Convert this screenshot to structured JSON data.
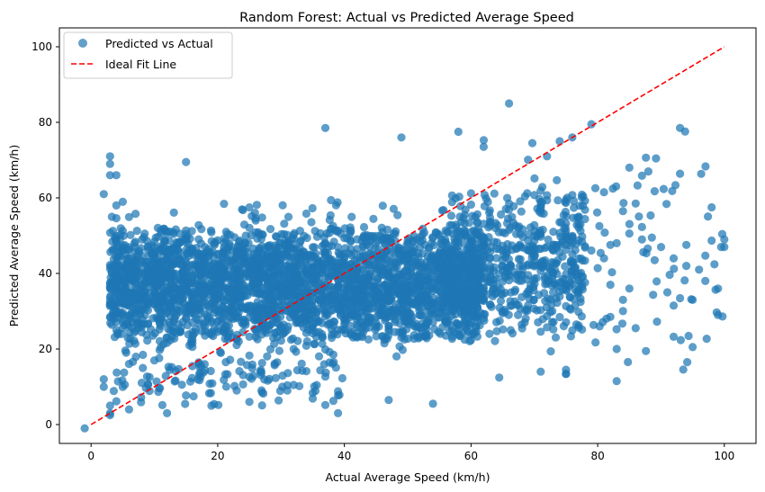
{
  "chart_data": {
    "type": "scatter",
    "title": "Random Forest: Actual vs Predicted Average Speed",
    "xlabel": "Actual Average Speed (km/h)",
    "ylabel": "Predicted Average Speed (km/h)",
    "xlim": [
      -5,
      105
    ],
    "ylim": [
      -5,
      105
    ],
    "xticks": [
      0,
      20,
      40,
      60,
      80,
      100
    ],
    "yticks": [
      0,
      20,
      40,
      60,
      80,
      100
    ],
    "grid": false,
    "legend_position": "top-left",
    "colors": {
      "points": "#1f77b4",
      "ideal_line": "#ff0000"
    },
    "series": [
      {
        "name": "Predicted vs Actual",
        "kind": "scatter",
        "clusters": [
          {
            "x_range": [
              3,
              62
            ],
            "y_range": [
              22,
              52
            ],
            "count": 2600
          },
          {
            "x_range": [
              55,
              78
            ],
            "y_range": [
              24,
              62
            ],
            "count": 600
          },
          {
            "x_range": [
              3,
              50
            ],
            "y_range": [
              18,
              60
            ],
            "count": 500
          },
          {
            "x_range": [
              3,
              40
            ],
            "y_range": [
              4,
              22
            ],
            "count": 140
          },
          {
            "x_range": [
              62,
              100
            ],
            "y_range": [
              12,
              78
            ],
            "count": 110
          }
        ],
        "points": [
          {
            "x": -1,
            "y": -1
          },
          {
            "x": 3,
            "y": 2.5
          },
          {
            "x": 3,
            "y": 3
          },
          {
            "x": 3,
            "y": 5
          },
          {
            "x": 3,
            "y": 71
          },
          {
            "x": 3,
            "y": 69
          },
          {
            "x": 3,
            "y": 66
          },
          {
            "x": 4,
            "y": 66
          },
          {
            "x": 2,
            "y": 61
          },
          {
            "x": 4,
            "y": 58
          },
          {
            "x": 2,
            "y": 12
          },
          {
            "x": 2,
            "y": 10
          },
          {
            "x": 6,
            "y": 4
          },
          {
            "x": 12,
            "y": 3
          },
          {
            "x": 19,
            "y": 5
          },
          {
            "x": 37,
            "y": 78.5
          },
          {
            "x": 39,
            "y": 3
          },
          {
            "x": 66,
            "y": 85
          },
          {
            "x": 93,
            "y": 78.5
          },
          {
            "x": 98,
            "y": 57.5
          },
          {
            "x": 100,
            "y": 49
          },
          {
            "x": 99.5,
            "y": 47
          },
          {
            "x": 100,
            "y": 47
          },
          {
            "x": 99,
            "y": 36
          },
          {
            "x": 99,
            "y": 29
          },
          {
            "x": 95,
            "y": 20.5
          },
          {
            "x": 83,
            "y": 20
          },
          {
            "x": 83,
            "y": 11.5
          },
          {
            "x": 71,
            "y": 14
          },
          {
            "x": 75,
            "y": 14.5
          },
          {
            "x": 88,
            "y": 67
          },
          {
            "x": 85,
            "y": 68
          },
          {
            "x": 79,
            "y": 79.5
          },
          {
            "x": 62,
            "y": 73.5
          },
          {
            "x": 15,
            "y": 69.5
          },
          {
            "x": 49,
            "y": 76
          },
          {
            "x": 58,
            "y": 77.5
          },
          {
            "x": 90,
            "y": 47
          },
          {
            "x": 92,
            "y": 44
          },
          {
            "x": 94,
            "y": 42
          },
          {
            "x": 95,
            "y": 33
          },
          {
            "x": 92,
            "y": 31.5
          },
          {
            "x": 86,
            "y": 25.5
          },
          {
            "x": 82,
            "y": 28.5
          },
          {
            "x": 86,
            "y": 58.5
          },
          {
            "x": 81,
            "y": 61.5
          },
          {
            "x": 84,
            "y": 56.5
          },
          {
            "x": 87,
            "y": 49
          },
          {
            "x": 89,
            "y": 43.5
          },
          {
            "x": 85,
            "y": 36
          },
          {
            "x": 84,
            "y": 33
          },
          {
            "x": 82,
            "y": 37
          },
          {
            "x": 81,
            "y": 44
          },
          {
            "x": 83,
            "y": 48
          },
          {
            "x": 91,
            "y": 35
          },
          {
            "x": 96,
            "y": 41
          },
          {
            "x": 97,
            "y": 38
          },
          {
            "x": 74,
            "y": 75
          },
          {
            "x": 76,
            "y": 76
          },
          {
            "x": 72,
            "y": 71
          },
          {
            "x": 25,
            "y": 6
          },
          {
            "x": 47,
            "y": 6.5
          },
          {
            "x": 54,
            "y": 5.5
          },
          {
            "x": 31,
            "y": 9
          }
        ]
      },
      {
        "name": "Ideal Fit Line",
        "kind": "line",
        "style": "dashed",
        "x": [
          0,
          100
        ],
        "y": [
          0,
          100
        ]
      }
    ]
  }
}
